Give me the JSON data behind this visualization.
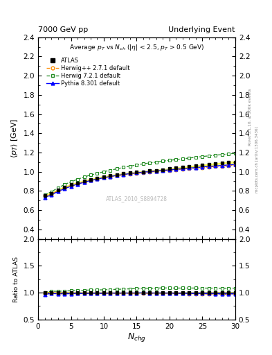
{
  "title_left": "7000 GeV pp",
  "title_right": "Underlying Event",
  "plot_title": "Average p_{T} vs N_{ch} (|\\eta| < 2.5, p_{T} > 0.5 GeV)",
  "xlabel": "N_{chg}",
  "ylabel_main": "\\langle p_{T} \\rangle [GeV]",
  "ylabel_ratio": "Ratio to ATLAS",
  "right_label_top": "Rivet 3.1.10, \\u2265 500k events",
  "right_label_bottom": "mcplots.cern.ch [arXiv:1306.3436]",
  "watermark": "ATLAS_2010_S8894728",
  "ylim_main": [
    0.3,
    2.4
  ],
  "ylim_ratio": [
    0.5,
    2.0
  ],
  "xlim": [
    0,
    30
  ],
  "atlas_x": [
    1,
    2,
    3,
    4,
    5,
    6,
    7,
    8,
    9,
    10,
    11,
    12,
    13,
    14,
    15,
    16,
    17,
    18,
    19,
    20,
    21,
    22,
    23,
    24,
    25,
    26,
    27,
    28,
    29,
    30
  ],
  "atlas_y": [
    0.755,
    0.77,
    0.81,
    0.84,
    0.865,
    0.885,
    0.905,
    0.92,
    0.935,
    0.95,
    0.96,
    0.97,
    0.98,
    0.988,
    0.995,
    1.0,
    1.01,
    1.015,
    1.02,
    1.03,
    1.038,
    1.045,
    1.052,
    1.06,
    1.068,
    1.075,
    1.082,
    1.09,
    1.095,
    1.1
  ],
  "atlas_yerr": [
    0.01,
    0.008,
    0.007,
    0.006,
    0.006,
    0.005,
    0.005,
    0.005,
    0.005,
    0.005,
    0.005,
    0.005,
    0.005,
    0.005,
    0.005,
    0.005,
    0.005,
    0.005,
    0.005,
    0.005,
    0.005,
    0.005,
    0.005,
    0.005,
    0.005,
    0.005,
    0.006,
    0.006,
    0.007,
    0.009
  ],
  "herwig_x": [
    1,
    2,
    3,
    4,
    5,
    6,
    7,
    8,
    9,
    10,
    11,
    12,
    13,
    14,
    15,
    16,
    17,
    18,
    19,
    20,
    21,
    22,
    23,
    24,
    25,
    26,
    27,
    28,
    29,
    30
  ],
  "herwig_y": [
    0.748,
    0.768,
    0.8,
    0.828,
    0.852,
    0.872,
    0.892,
    0.908,
    0.922,
    0.936,
    0.948,
    0.958,
    0.967,
    0.975,
    0.982,
    0.989,
    0.996,
    1.002,
    1.008,
    1.014,
    1.02,
    1.026,
    1.032,
    1.038,
    1.043,
    1.048,
    1.054,
    1.058,
    1.063,
    1.068
  ],
  "herwig7_x": [
    1,
    2,
    3,
    4,
    5,
    6,
    7,
    8,
    9,
    10,
    11,
    12,
    13,
    14,
    15,
    16,
    17,
    18,
    19,
    20,
    21,
    22,
    23,
    24,
    25,
    26,
    27,
    28,
    29,
    30
  ],
  "herwig7_y": [
    0.76,
    0.79,
    0.83,
    0.865,
    0.895,
    0.92,
    0.945,
    0.965,
    0.982,
    1.0,
    1.015,
    1.03,
    1.044,
    1.058,
    1.07,
    1.082,
    1.092,
    1.1,
    1.11,
    1.118,
    1.126,
    1.134,
    1.142,
    1.15,
    1.158,
    1.165,
    1.172,
    1.178,
    1.185,
    1.192
  ],
  "pythia_x": [
    1,
    2,
    3,
    4,
    5,
    6,
    7,
    8,
    9,
    10,
    11,
    12,
    13,
    14,
    15,
    16,
    17,
    18,
    19,
    20,
    21,
    22,
    23,
    24,
    25,
    26,
    27,
    28,
    29,
    30
  ],
  "pythia_y": [
    0.73,
    0.758,
    0.793,
    0.822,
    0.848,
    0.87,
    0.89,
    0.908,
    0.923,
    0.937,
    0.95,
    0.961,
    0.971,
    0.98,
    0.988,
    0.995,
    1.001,
    1.007,
    1.013,
    1.019,
    1.025,
    1.031,
    1.037,
    1.043,
    1.049,
    1.055,
    1.06,
    1.065,
    1.07,
    1.075
  ],
  "atlas_color": "#000000",
  "herwig_color": "#FF8C00",
  "herwig7_color": "#228B22",
  "pythia_color": "#0000FF",
  "atlas_band_color": "#FFFF00",
  "atlas_band_alpha": 0.5,
  "yticks_main": [
    0.4,
    0.6,
    0.8,
    1.0,
    1.2,
    1.4,
    1.6,
    1.8,
    2.0,
    2.2,
    2.4
  ],
  "yticks_ratio": [
    0.5,
    1.0,
    1.5,
    2.0
  ],
  "xticks": [
    0,
    5,
    10,
    15,
    20,
    25,
    30
  ]
}
